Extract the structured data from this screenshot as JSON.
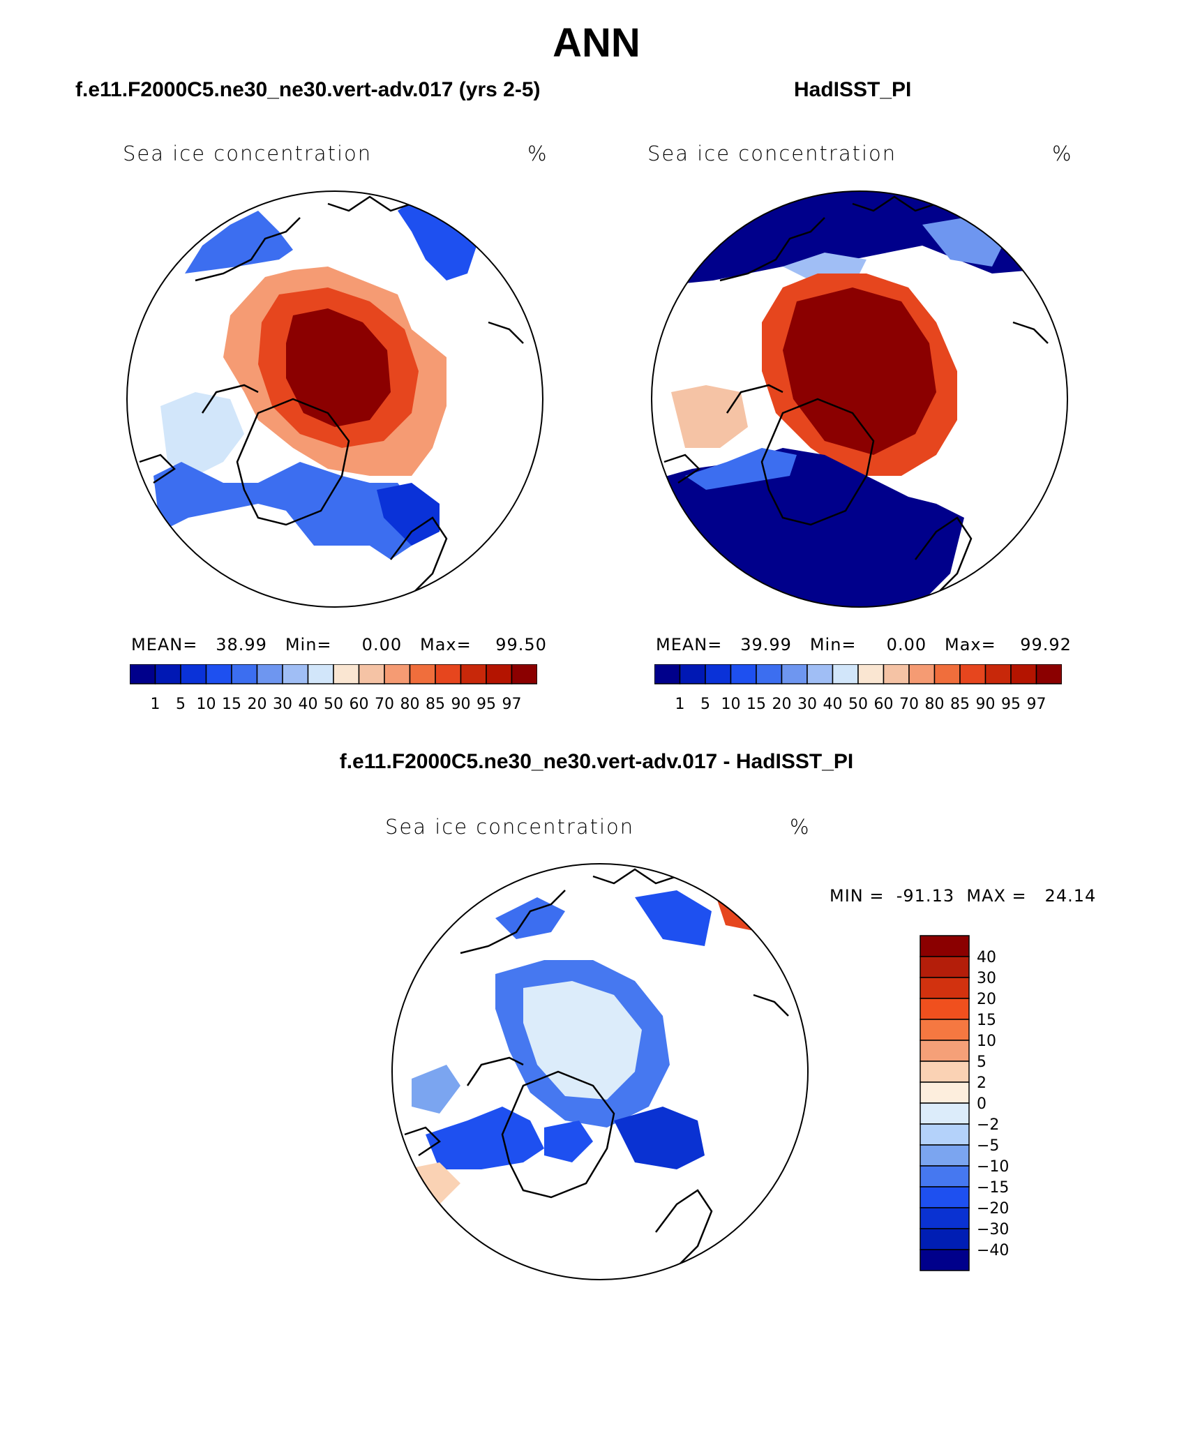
{
  "figure_title": "ANN",
  "panels": [
    {
      "title": "f.e11.F2000C5.ne30_ne30.vert-adv.017 (yrs 2-5)",
      "variable": "Sea ice concentration",
      "units": "%",
      "stats": "MEAN=   38.99   Min=     0.00   Max=    99.50"
    },
    {
      "title": "HadISST_PI",
      "variable": "Sea ice concentration",
      "units": "%",
      "stats": "MEAN=   39.99   Min=     0.00   Max=    99.92"
    },
    {
      "title": "f.e11.F2000C5.ne30_ne30.vert-adv.017 - HadISST_PI",
      "variable": "Sea ice concentration",
      "units": "%",
      "stats": "MIN =  -91.13  MAX =   24.14"
    }
  ],
  "colorbar_abs": {
    "levels": [
      "1",
      "5",
      "10",
      "15",
      "20",
      "30",
      "40",
      "50",
      "60",
      "70",
      "80",
      "85",
      "90",
      "95",
      "97"
    ],
    "colors": [
      "#00008b",
      "#0018b4",
      "#0a32d8",
      "#1e50f0",
      "#3c6ef0",
      "#6e96f0",
      "#a0bef5",
      "#d2e6fa",
      "#fae6d2",
      "#f5c3a5",
      "#f59b73",
      "#f06e3c",
      "#e6461e",
      "#c8280a",
      "#b41400",
      "#8b0000"
    ]
  },
  "colorbar_diff": {
    "levels": [
      "40",
      "30",
      "20",
      "15",
      "10",
      "5",
      "2",
      "0",
      "−2",
      "−5",
      "−10",
      "−15",
      "−20",
      "−30",
      "−40"
    ],
    "colors": [
      "#8b0000",
      "#b41e0a",
      "#d2320f",
      "#f0501e",
      "#f57841",
      "#f5a078",
      "#fad2b4",
      "#fdeedd",
      "#dcecfa",
      "#b4d2fa",
      "#7ba5f0",
      "#4678f0",
      "#1e50f0",
      "#0a32d2",
      "#001eb4",
      "#00008b"
    ]
  }
}
